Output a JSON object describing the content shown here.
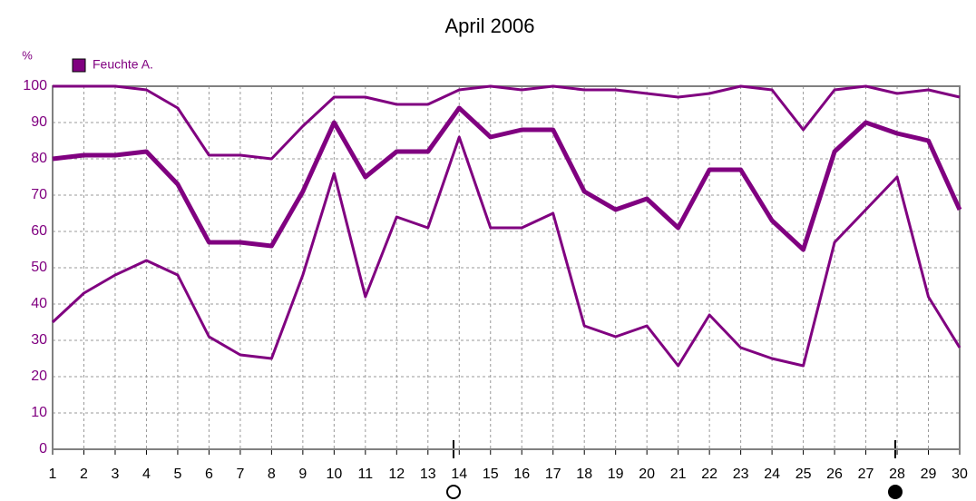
{
  "chart_data": {
    "type": "line",
    "title": "April 2006",
    "ylabel": "%",
    "x": [
      1,
      2,
      3,
      4,
      5,
      6,
      7,
      8,
      9,
      10,
      11,
      12,
      13,
      14,
      15,
      16,
      17,
      18,
      19,
      20,
      21,
      22,
      23,
      24,
      25,
      26,
      27,
      28,
      29,
      30
    ],
    "xlim": [
      1,
      30
    ],
    "xticks": [
      1,
      2,
      3,
      4,
      5,
      6,
      7,
      8,
      9,
      10,
      11,
      12,
      13,
      14,
      15,
      16,
      17,
      18,
      19,
      20,
      21,
      22,
      23,
      24,
      25,
      26,
      27,
      28,
      29,
      30
    ],
    "ylim": [
      0,
      100
    ],
    "yticks": [
      0,
      10,
      20,
      30,
      40,
      50,
      60,
      70,
      80,
      90,
      100
    ],
    "grid": true,
    "series": [
      {
        "color": "#800080",
        "line_width": 3,
        "values": [
          100,
          100,
          100,
          99,
          94,
          81,
          81,
          80,
          89,
          97,
          97,
          95,
          95,
          99,
          100,
          99,
          100,
          99,
          99,
          98,
          97,
          98,
          100,
          99,
          88,
          99,
          100,
          98,
          99,
          97
        ]
      },
      {
        "name": "Feuchte A.",
        "color": "#800080",
        "line_width": 5,
        "values": [
          80,
          81,
          81,
          82,
          73,
          57,
          57,
          56,
          71,
          90,
          75,
          82,
          82,
          94,
          86,
          88,
          88,
          71,
          66,
          69,
          61,
          77,
          77,
          63,
          55,
          82,
          90,
          87,
          85,
          66
        ]
      },
      {
        "color": "#800080",
        "line_width": 3,
        "values": [
          35,
          43,
          48,
          52,
          48,
          31,
          26,
          25,
          48,
          76,
          42,
          64,
          61,
          86,
          61,
          61,
          65,
          34,
          31,
          34,
          23,
          37,
          28,
          25,
          23,
          57,
          66,
          75,
          42,
          28
        ]
      }
    ]
  }
}
